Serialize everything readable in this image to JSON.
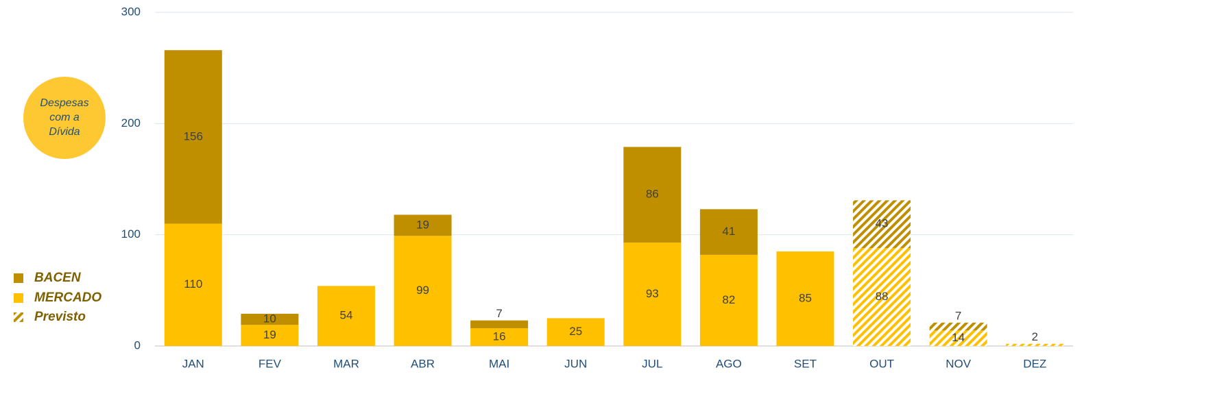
{
  "chart_data": {
    "type": "stacked_bar",
    "annotation": "Despesas com a Dívida",
    "categories": [
      "JAN",
      "FEV",
      "MAR",
      "ABR",
      "MAI",
      "JUN",
      "JUL",
      "AGO",
      "SET",
      "OUT",
      "NOV",
      "DEZ"
    ],
    "series": [
      {
        "name": "MERCADO",
        "color": "#ffc000",
        "values": [
          110,
          19,
          54,
          99,
          16,
          25,
          93,
          82,
          85,
          88,
          14,
          2
        ]
      },
      {
        "name": "BACEN",
        "color": "#bf8f00",
        "values": [
          156,
          10,
          null,
          19,
          7,
          null,
          86,
          41,
          null,
          43,
          7,
          null
        ]
      }
    ],
    "forecast": [
      false,
      false,
      false,
      false,
      false,
      false,
      false,
      false,
      false,
      true,
      true,
      true
    ],
    "forecast_legend": "Previsto",
    "ylim": [
      0,
      300
    ],
    "yticks": [
      0,
      100,
      200,
      300
    ],
    "grid": true,
    "legend": "left"
  }
}
